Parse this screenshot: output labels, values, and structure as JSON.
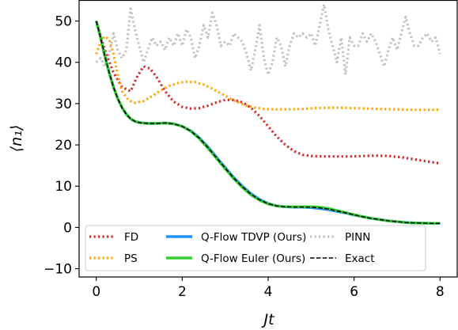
{
  "chart_data": {
    "type": "line",
    "title": "",
    "xlabel": "Jt",
    "ylabel": "⟨n₁⟩",
    "xlim": [
      -0.4,
      8.4
    ],
    "ylim": [
      -12,
      55
    ],
    "x_ticks": [
      0,
      2,
      4,
      6,
      8
    ],
    "y_ticks": [
      -10,
      0,
      10,
      20,
      30,
      40,
      50
    ],
    "x_tick_labels": [
      "0",
      "2",
      "4",
      "6",
      "8"
    ],
    "y_tick_labels": [
      "−10",
      "0",
      "10",
      "20",
      "30",
      "40",
      "50"
    ],
    "grid": false,
    "legend_position": "bottom",
    "legend_columns": 3,
    "series": [
      {
        "name": "FD",
        "color": "#d62728",
        "style": "dotted",
        "points": [
          [
            0,
            50
          ],
          [
            0.2,
            43
          ],
          [
            0.4,
            37.5
          ],
          [
            0.6,
            34
          ],
          [
            0.8,
            33
          ],
          [
            0.95,
            36.5
          ],
          [
            1.1,
            39
          ],
          [
            1.25,
            38.5
          ],
          [
            1.4,
            36.5
          ],
          [
            1.6,
            33
          ],
          [
            1.8,
            30.5
          ],
          [
            2.0,
            29.2
          ],
          [
            2.2,
            28.8
          ],
          [
            2.4,
            28.9
          ],
          [
            2.6,
            29.5
          ],
          [
            2.8,
            30.3
          ],
          [
            3.0,
            30.9
          ],
          [
            3.2,
            30.9
          ],
          [
            3.4,
            30.3
          ],
          [
            3.6,
            29
          ],
          [
            3.8,
            27
          ],
          [
            4.0,
            24.5
          ],
          [
            4.2,
            22
          ],
          [
            4.4,
            20
          ],
          [
            4.6,
            18.5
          ],
          [
            4.8,
            17.6
          ],
          [
            5.0,
            17.3
          ],
          [
            5.3,
            17.2
          ],
          [
            5.6,
            17.2
          ],
          [
            5.9,
            17.2
          ],
          [
            6.2,
            17.3
          ],
          [
            6.5,
            17.4
          ],
          [
            6.8,
            17.3
          ],
          [
            7.1,
            17
          ],
          [
            7.4,
            16.5
          ],
          [
            7.7,
            16
          ],
          [
            8.0,
            15.5
          ]
        ]
      },
      {
        "name": "PS",
        "color": "#ffa500",
        "style": "dotted",
        "points": [
          [
            0,
            42
          ],
          [
            0.1,
            45
          ],
          [
            0.2,
            46.3
          ],
          [
            0.3,
            45.5
          ],
          [
            0.4,
            42
          ],
          [
            0.5,
            37
          ],
          [
            0.6,
            33
          ],
          [
            0.75,
            30.8
          ],
          [
            0.9,
            30.2
          ],
          [
            1.1,
            30.6
          ],
          [
            1.3,
            31.8
          ],
          [
            1.5,
            33.2
          ],
          [
            1.7,
            34.3
          ],
          [
            1.9,
            35
          ],
          [
            2.1,
            35.3
          ],
          [
            2.3,
            35.2
          ],
          [
            2.5,
            34.6
          ],
          [
            2.7,
            33.6
          ],
          [
            2.9,
            32.5
          ],
          [
            3.1,
            31.3
          ],
          [
            3.3,
            30.3
          ],
          [
            3.5,
            29.5
          ],
          [
            3.7,
            29
          ],
          [
            3.9,
            28.7
          ],
          [
            4.2,
            28.6
          ],
          [
            4.5,
            28.6
          ],
          [
            4.8,
            28.7
          ],
          [
            5.1,
            28.9
          ],
          [
            5.4,
            29
          ],
          [
            5.7,
            29
          ],
          [
            6.0,
            28.9
          ],
          [
            6.3,
            28.8
          ],
          [
            6.6,
            28.7
          ],
          [
            7.0,
            28.6
          ],
          [
            7.4,
            28.5
          ],
          [
            7.7,
            28.5
          ],
          [
            8.0,
            28.5
          ]
        ]
      },
      {
        "name": "Q-Flow TDVP (Ours)",
        "color": "#1e90ff",
        "style": "solid",
        "points": [
          [
            0,
            50
          ],
          [
            0.1,
            46
          ],
          [
            0.2,
            41.5
          ],
          [
            0.3,
            37.5
          ],
          [
            0.4,
            34
          ],
          [
            0.5,
            31.2
          ],
          [
            0.6,
            29
          ],
          [
            0.7,
            27.4
          ],
          [
            0.8,
            26.3
          ],
          [
            0.9,
            25.7
          ],
          [
            1.0,
            25.4
          ],
          [
            1.2,
            25.2
          ],
          [
            1.4,
            25.2
          ],
          [
            1.6,
            25.3
          ],
          [
            1.8,
            25.1
          ],
          [
            2.0,
            24.5
          ],
          [
            2.2,
            23.4
          ],
          [
            2.4,
            21.7
          ],
          [
            2.6,
            19.5
          ],
          [
            2.8,
            17
          ],
          [
            3.0,
            14.5
          ],
          [
            3.2,
            12.1
          ],
          [
            3.4,
            10
          ],
          [
            3.6,
            8.2
          ],
          [
            3.8,
            6.8
          ],
          [
            4.0,
            5.8
          ],
          [
            4.2,
            5.2
          ],
          [
            4.4,
            5
          ],
          [
            4.6,
            4.9
          ],
          [
            4.8,
            4.9
          ],
          [
            5.0,
            4.8
          ],
          [
            5.2,
            4.6
          ],
          [
            5.4,
            4.3
          ],
          [
            5.6,
            3.9
          ],
          [
            5.8,
            3.5
          ],
          [
            6.0,
            3
          ],
          [
            6.2,
            2.6
          ],
          [
            6.4,
            2.2
          ],
          [
            6.6,
            1.9
          ],
          [
            6.8,
            1.6
          ],
          [
            7.0,
            1.4
          ],
          [
            7.2,
            1.2
          ],
          [
            7.4,
            1.1
          ],
          [
            7.6,
            1.05
          ],
          [
            7.8,
            1
          ],
          [
            8.0,
            1
          ]
        ]
      },
      {
        "name": "Q-Flow Euler (Ours)",
        "color": "#32cd32",
        "style": "solid",
        "points": [
          [
            0,
            50
          ],
          [
            0.1,
            46
          ],
          [
            0.2,
            41.5
          ],
          [
            0.3,
            37.5
          ],
          [
            0.4,
            34
          ],
          [
            0.5,
            31.2
          ],
          [
            0.6,
            29
          ],
          [
            0.7,
            27.4
          ],
          [
            0.8,
            26.3
          ],
          [
            0.9,
            25.7
          ],
          [
            1.0,
            25.4
          ],
          [
            1.2,
            25.2
          ],
          [
            1.4,
            25.2
          ],
          [
            1.6,
            25.3
          ],
          [
            1.8,
            25.1
          ],
          [
            2.0,
            24.5
          ],
          [
            2.2,
            23.3
          ],
          [
            2.4,
            21.5
          ],
          [
            2.6,
            19.2
          ],
          [
            2.8,
            16.7
          ],
          [
            3.0,
            14.2
          ],
          [
            3.2,
            11.8
          ],
          [
            3.4,
            9.7
          ],
          [
            3.6,
            7.9
          ],
          [
            3.8,
            6.6
          ],
          [
            4.0,
            5.7
          ],
          [
            4.2,
            5.2
          ],
          [
            4.4,
            5
          ],
          [
            4.6,
            5
          ],
          [
            4.8,
            5
          ],
          [
            5.0,
            5
          ],
          [
            5.2,
            4.9
          ],
          [
            5.4,
            4.6
          ],
          [
            5.6,
            4.1
          ],
          [
            5.8,
            3.6
          ],
          [
            6.0,
            3.1
          ],
          [
            6.2,
            2.6
          ],
          [
            6.4,
            2.2
          ],
          [
            6.6,
            1.9
          ],
          [
            6.8,
            1.6
          ],
          [
            7.0,
            1.4
          ],
          [
            7.2,
            1.2
          ],
          [
            7.4,
            1.1
          ],
          [
            7.6,
            1.05
          ],
          [
            7.8,
            1
          ],
          [
            8.0,
            1
          ]
        ]
      },
      {
        "name": "PINN",
        "color": "#c0c0c0",
        "style": "dotted",
        "points": [
          [
            0,
            40
          ],
          [
            0.1,
            41
          ],
          [
            0.2,
            39
          ],
          [
            0.3,
            42
          ],
          [
            0.4,
            47
          ],
          [
            0.5,
            43
          ],
          [
            0.6,
            41
          ],
          [
            0.7,
            43
          ],
          [
            0.8,
            53
          ],
          [
            0.9,
            48
          ],
          [
            1.0,
            44
          ],
          [
            1.1,
            40
          ],
          [
            1.2,
            43
          ],
          [
            1.3,
            46
          ],
          [
            1.4,
            44
          ],
          [
            1.5,
            45
          ],
          [
            1.6,
            43
          ],
          [
            1.7,
            46
          ],
          [
            1.8,
            44
          ],
          [
            1.9,
            47
          ],
          [
            2.0,
            44
          ],
          [
            2.1,
            48
          ],
          [
            2.2,
            46
          ],
          [
            2.3,
            41
          ],
          [
            2.4,
            44
          ],
          [
            2.5,
            49
          ],
          [
            2.6,
            46
          ],
          [
            2.7,
            52
          ],
          [
            2.8,
            49
          ],
          [
            2.9,
            44
          ],
          [
            3.0,
            45
          ],
          [
            3.1,
            44
          ],
          [
            3.2,
            47
          ],
          [
            3.3,
            46
          ],
          [
            3.4,
            45
          ],
          [
            3.5,
            42
          ],
          [
            3.6,
            38
          ],
          [
            3.7,
            43
          ],
          [
            3.8,
            49
          ],
          [
            3.9,
            41
          ],
          [
            4.0,
            37
          ],
          [
            4.1,
            40
          ],
          [
            4.2,
            46
          ],
          [
            4.3,
            44
          ],
          [
            4.4,
            39
          ],
          [
            4.5,
            44
          ],
          [
            4.6,
            47
          ],
          [
            4.7,
            46
          ],
          [
            4.8,
            47
          ],
          [
            4.9,
            46
          ],
          [
            5.0,
            47
          ],
          [
            5.1,
            44
          ],
          [
            5.2,
            49
          ],
          [
            5.3,
            54
          ],
          [
            5.4,
            48
          ],
          [
            5.5,
            44
          ],
          [
            5.6,
            40
          ],
          [
            5.7,
            46
          ],
          [
            5.8,
            37
          ],
          [
            5.9,
            46
          ],
          [
            6.0,
            44
          ],
          [
            6.1,
            44
          ],
          [
            6.2,
            47
          ],
          [
            6.3,
            45
          ],
          [
            6.4,
            47
          ],
          [
            6.5,
            45
          ],
          [
            6.6,
            42
          ],
          [
            6.7,
            39
          ],
          [
            6.8,
            43
          ],
          [
            6.9,
            46
          ],
          [
            7.0,
            43
          ],
          [
            7.1,
            47
          ],
          [
            7.2,
            51
          ],
          [
            7.3,
            47
          ],
          [
            7.4,
            44
          ],
          [
            7.5,
            44
          ],
          [
            7.6,
            46
          ],
          [
            7.7,
            47
          ],
          [
            7.8,
            45
          ],
          [
            7.9,
            46
          ],
          [
            8.0,
            42
          ]
        ]
      },
      {
        "name": "Exact",
        "color": "#000000",
        "style": "dashed",
        "points": [
          [
            0,
            50
          ],
          [
            0.1,
            46
          ],
          [
            0.2,
            41.5
          ],
          [
            0.3,
            37.5
          ],
          [
            0.4,
            34
          ],
          [
            0.5,
            31.2
          ],
          [
            0.6,
            29
          ],
          [
            0.7,
            27.4
          ],
          [
            0.8,
            26.3
          ],
          [
            0.9,
            25.7
          ],
          [
            1.0,
            25.4
          ],
          [
            1.2,
            25.2
          ],
          [
            1.4,
            25.2
          ],
          [
            1.6,
            25.3
          ],
          [
            1.8,
            25.1
          ],
          [
            2.0,
            24.5
          ],
          [
            2.2,
            23.35
          ],
          [
            2.4,
            21.6
          ],
          [
            2.6,
            19.35
          ],
          [
            2.8,
            16.85
          ],
          [
            3.0,
            14.35
          ],
          [
            3.2,
            11.95
          ],
          [
            3.4,
            9.85
          ],
          [
            3.6,
            8.05
          ],
          [
            3.8,
            6.7
          ],
          [
            4.0,
            5.75
          ],
          [
            4.2,
            5.2
          ],
          [
            4.4,
            5
          ],
          [
            4.6,
            4.95
          ],
          [
            4.8,
            4.95
          ],
          [
            5.0,
            4.9
          ],
          [
            5.2,
            4.75
          ],
          [
            5.4,
            4.45
          ],
          [
            5.6,
            4
          ],
          [
            5.8,
            3.55
          ],
          [
            6.0,
            3.05
          ],
          [
            6.2,
            2.6
          ],
          [
            6.4,
            2.2
          ],
          [
            6.6,
            1.9
          ],
          [
            6.8,
            1.6
          ],
          [
            7.0,
            1.4
          ],
          [
            7.2,
            1.2
          ],
          [
            7.4,
            1.1
          ],
          [
            7.6,
            1.05
          ],
          [
            7.8,
            1
          ],
          [
            8.0,
            1
          ]
        ]
      }
    ]
  }
}
